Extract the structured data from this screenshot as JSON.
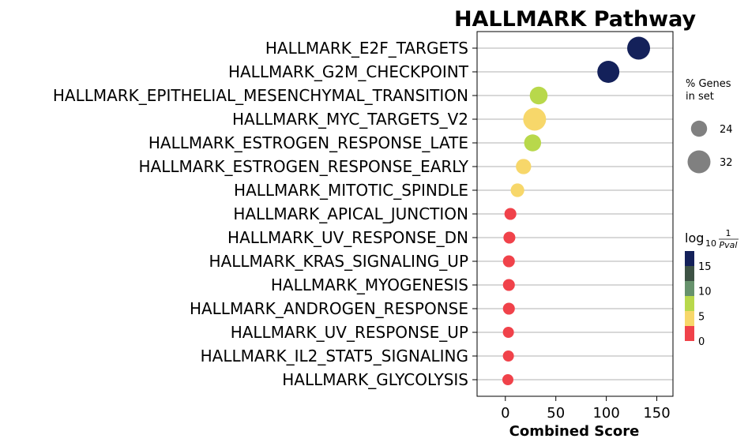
{
  "chart_data": {
    "type": "scatter",
    "title": "HALLMARK Pathway",
    "xlabel": "Combined Score",
    "xlim": [
      -28,
      166
    ],
    "xticks": [
      0,
      50,
      100,
      150
    ],
    "grid": "horizontal",
    "categories": [
      "HALLMARK_E2F_TARGETS",
      "HALLMARK_G2M_CHECKPOINT",
      "HALLMARK_EPITHELIAL_MESENCHYMAL_TRANSITION",
      "HALLMARK_MYC_TARGETS_V2",
      "HALLMARK_ESTROGEN_RESPONSE_LATE",
      "HALLMARK_ESTROGEN_RESPONSE_EARLY",
      "HALLMARK_MITOTIC_SPINDLE",
      "HALLMARK_APICAL_JUNCTION",
      "HALLMARK_UV_RESPONSE_DN",
      "HALLMARK_KRAS_SIGNALING_UP",
      "HALLMARK_MYOGENESIS",
      "HALLMARK_ANDROGEN_RESPONSE",
      "HALLMARK_UV_RESPONSE_UP",
      "HALLMARK_IL2_STAT5_SIGNALING",
      "HALLMARK_GLYCOLYSIS"
    ],
    "x": [
      132,
      102,
      33,
      29,
      27,
      18,
      12,
      5,
      4,
      3.5,
      3.5,
      3.5,
      3,
      3,
      2.5
    ],
    "gene_pct": [
      32,
      31,
      26,
      32,
      25,
      23,
      21,
      19,
      19,
      19,
      19,
      19,
      18,
      18,
      18
    ],
    "log10_inv_pval": [
      16,
      15,
      6.5,
      4.8,
      6.5,
      4.7,
      4.6,
      2.2,
      2,
      2,
      2,
      2,
      1.8,
      1.8,
      1.6
    ],
    "size_legend": {
      "title_lines": [
        "% Genes",
        "in set"
      ],
      "values": [
        24,
        32
      ]
    },
    "color_legend": {
      "title_main": "log",
      "title_sub": "10",
      "title_frac_num": "1",
      "title_frac_den": "Pval",
      "ticks": [
        0,
        5,
        10,
        15
      ],
      "bands": [
        "#f0424a",
        "#f7d76a",
        "#b8d84b",
        "#66926c",
        "#3d5244",
        "#14215a"
      ],
      "band_edges": [
        0,
        3,
        6,
        9,
        12,
        15,
        18
      ]
    }
  }
}
